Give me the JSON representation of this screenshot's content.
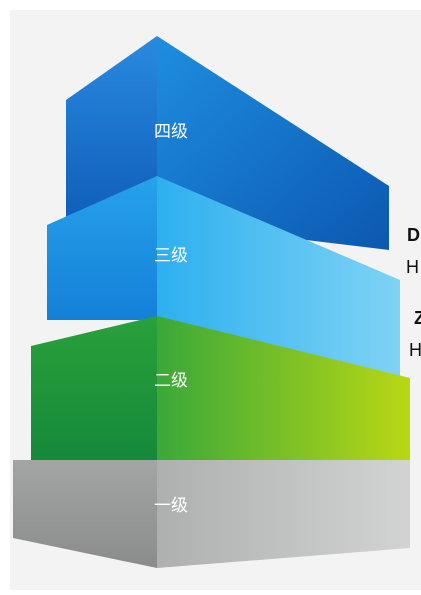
{
  "diagram": {
    "levels": [
      {
        "label": "一级",
        "front_color": "#9a9c9c",
        "side_color": "#c4c6c6"
      },
      {
        "label": "二级",
        "front_color": "#1b9a3a",
        "side_color": "#a8cf1c"
      },
      {
        "label": "三级",
        "front_color": "#1e8fe0",
        "side_color": "#5ec8f2"
      },
      {
        "label": "四级",
        "front_color": "#1578d0",
        "side_color": "#1a86d8"
      }
    ],
    "side_text": [
      "D",
      "H",
      "Z",
      "H"
    ]
  }
}
